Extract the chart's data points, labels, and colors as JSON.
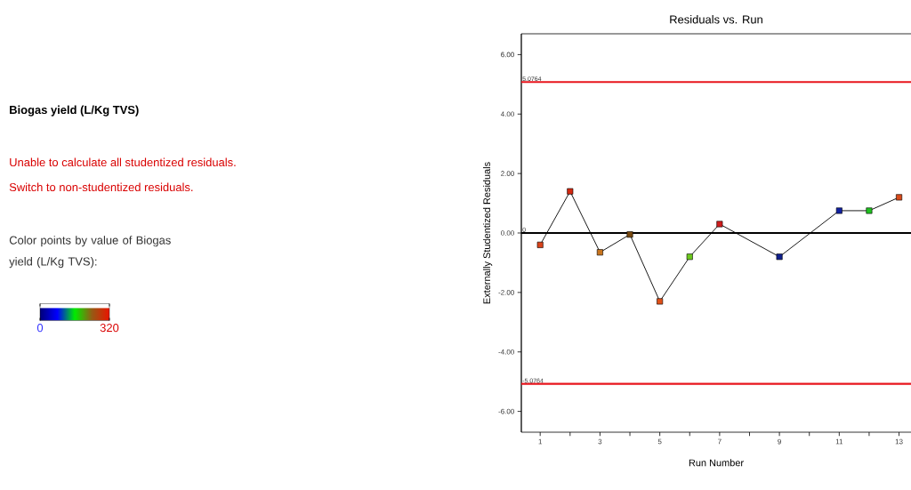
{
  "chart_data": {
    "type": "line",
    "title": "Residuals vs. Run",
    "xlabel": "Run Number",
    "ylabel": "Externally Studentized Residuals",
    "clabel": "Color points by value of Biogas yield (L/Kg TVS):",
    "annotations": [
      "Biogas yield (L/Kg TVS)",
      "Unable to calculate all studentized residuals.",
      "Switch to non-studentized residuals."
    ],
    "series": [
      {
        "color": "#000000",
        "x": [
          1,
          2,
          3,
          4,
          5,
          6,
          7,
          9,
          11,
          12,
          13
        ],
        "values": [
          -0.4,
          1.4,
          -0.65,
          -0.05,
          -2.3,
          -0.8,
          0.3,
          -0.8,
          0.75,
          0.75,
          1.2
        ],
        "colors": [
          "#d8431a",
          "#d42a12",
          "#c8741e",
          "#7a4a10",
          "#e05018",
          "#6cc81e",
          "#d01c1c",
          "#10208c",
          "#1020a0",
          "#20c020",
          "#d84a1a"
        ]
      }
    ],
    "marker": "square",
    "line_style": "solid",
    "grid": false,
    "cticks": [
      0,
      320
    ],
    "xlim": [
      0.37,
      13.4
    ],
    "ylim": [
      -6.7,
      6.7
    ],
    "xticks": [
      1,
      {
        "value": 2,
        "label": null
      },
      3,
      {
        "value": 4,
        "label": null
      },
      5,
      {
        "value": 6,
        "label": null
      },
      7,
      {
        "value": 8,
        "label": null
      },
      9,
      {
        "value": 10,
        "label": null
      },
      11,
      {
        "value": 12,
        "label": null
      },
      13
    ],
    "yticks": [
      {
        "value": -6,
        "label": "-6.00"
      },
      {
        "value": -4,
        "label": "-4.00"
      },
      {
        "value": -2,
        "label": "-2.00"
      },
      {
        "value": 0,
        "label": "0.00"
      },
      {
        "value": 2,
        "label": "2.00"
      },
      {
        "value": 4,
        "label": "4.00"
      },
      {
        "value": 6,
        "label": "6.00"
      }
    ],
    "ref_lines": [
      {
        "axis": "y",
        "value": 5.0764,
        "label": "5.0764",
        "color": "#e8141c"
      },
      {
        "axis": "y",
        "value": 0,
        "label": "0",
        "color": "#000000"
      },
      {
        "axis": "y",
        "value": -5.0764,
        "label": "-5.0764",
        "color": "#e8141c"
      }
    ]
  }
}
